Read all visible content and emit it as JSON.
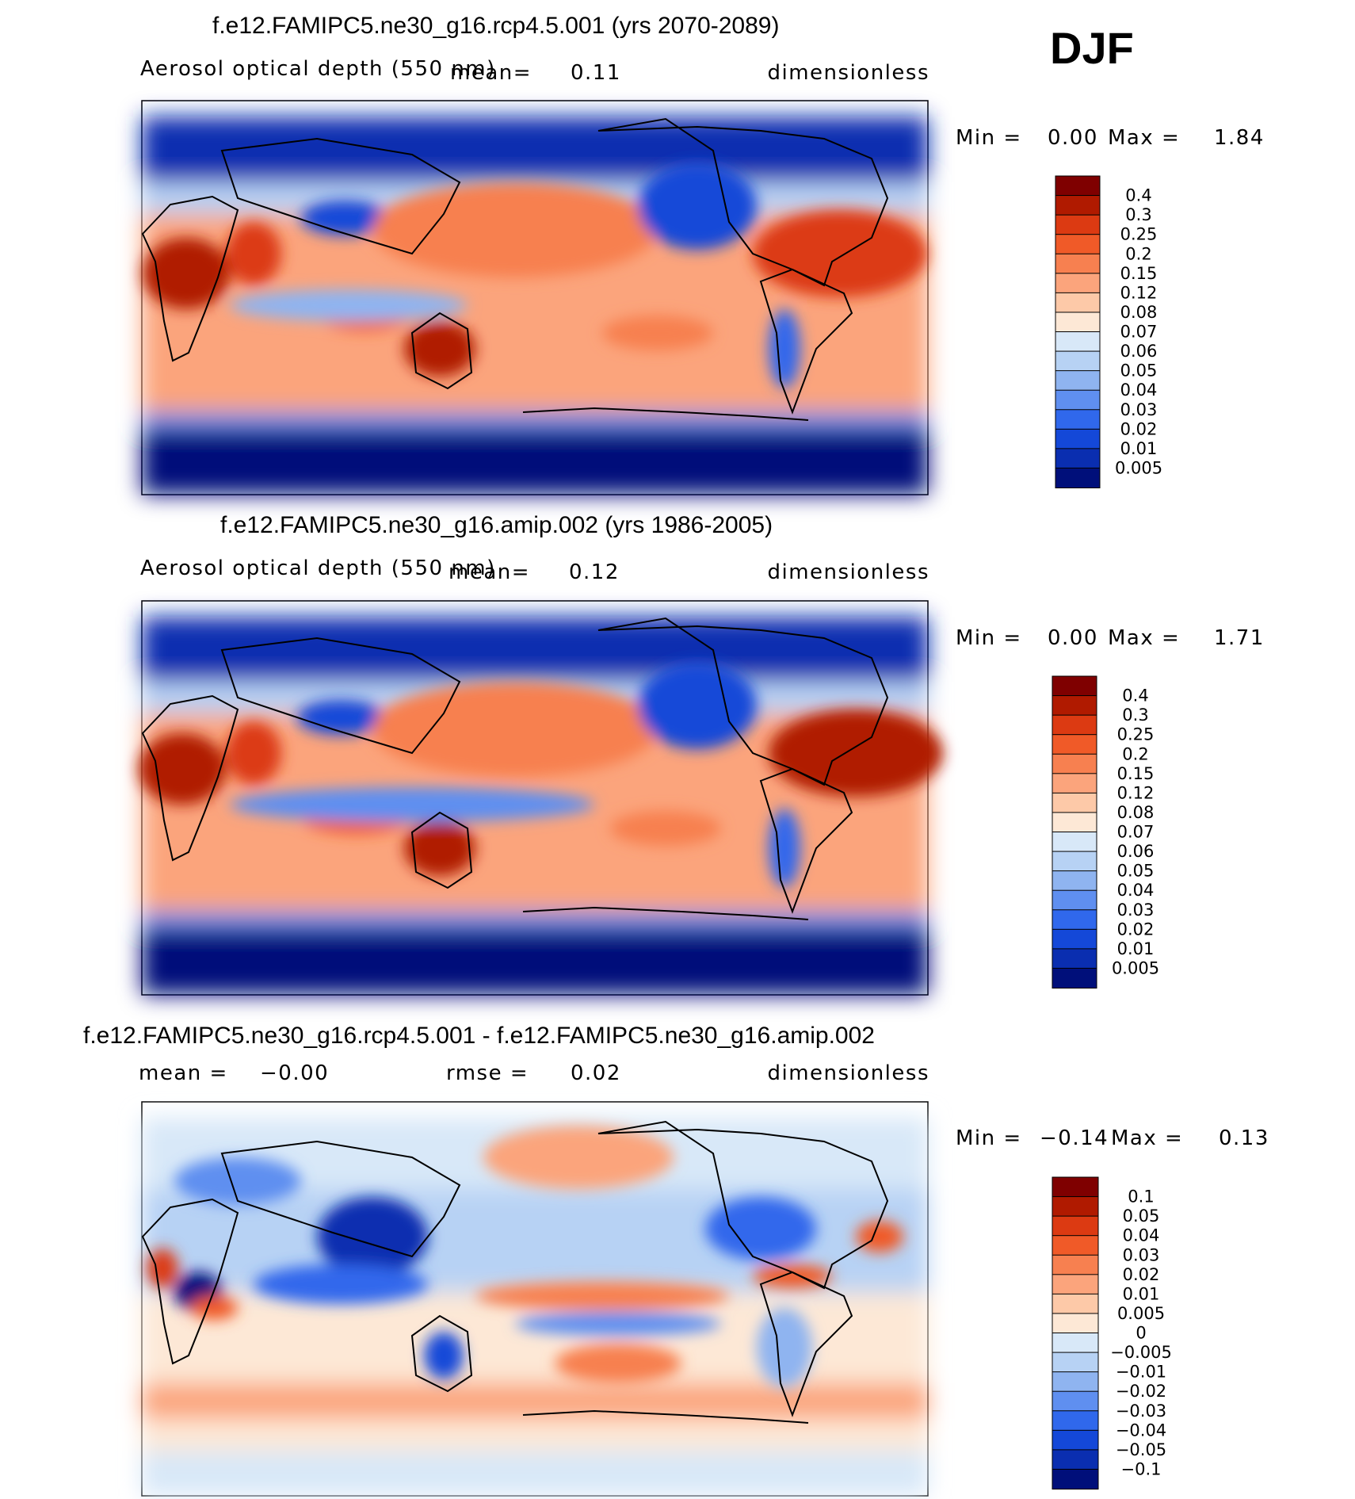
{
  "season": "DJF",
  "chart_data": [
    {
      "type": "heatmap",
      "title": "f.e12.FAMIPC5.ne30_g16.rcp4.5.001 (yrs 2070-2089)",
      "variable": "Aerosol optical depth (550 nm)",
      "mean_label": "mean=",
      "mean": "0.11",
      "units": "dimensionless",
      "min_label": "Min =",
      "min": "0.00",
      "max_label": "Max =",
      "max": "1.84",
      "colorbar_levels": [
        "0.4",
        "0.3",
        "0.25",
        "0.2",
        "0.15",
        "0.12",
        "0.08",
        "0.07",
        "0.06",
        "0.05",
        "0.04",
        "0.03",
        "0.02",
        "0.01",
        "0.005"
      ],
      "colorbar_colors": [
        "#7f0000",
        "#b01a00",
        "#dc3a12",
        "#f05a28",
        "#f78050",
        "#fba47c",
        "#fdc9a8",
        "#fde8d6",
        "#d8e8f8",
        "#b7d2f4",
        "#8fb4f0",
        "#5f8ff0",
        "#3068ec",
        "#1448d8",
        "#0a2eb0",
        "#000f7a"
      ]
    },
    {
      "type": "heatmap",
      "title": "f.e12.FAMIPC5.ne30_g16.amip.002 (yrs 1986-2005)",
      "variable": "Aerosol optical depth (550 nm)",
      "mean_label": "mean=",
      "mean": "0.12",
      "units": "dimensionless",
      "min_label": "Min =",
      "min": "0.00",
      "max_label": "Max =",
      "max": "1.71",
      "colorbar_levels": [
        "0.4",
        "0.3",
        "0.25",
        "0.2",
        "0.15",
        "0.12",
        "0.08",
        "0.07",
        "0.06",
        "0.05",
        "0.04",
        "0.03",
        "0.02",
        "0.01",
        "0.005"
      ],
      "colorbar_colors": [
        "#7f0000",
        "#b01a00",
        "#dc3a12",
        "#f05a28",
        "#f78050",
        "#fba47c",
        "#fdc9a8",
        "#fde8d6",
        "#d8e8f8",
        "#b7d2f4",
        "#8fb4f0",
        "#5f8ff0",
        "#3068ec",
        "#1448d8",
        "#0a2eb0",
        "#000f7a"
      ]
    },
    {
      "type": "heatmap",
      "title": "f.e12.FAMIPC5.ne30_g16.rcp4.5.001 - f.e12.FAMIPC5.ne30_g16.amip.002",
      "mean_label": "mean =",
      "mean": "−0.00",
      "rmse_label": "rmse =",
      "rmse": "0.02",
      "units": "dimensionless",
      "min_label": "Min =",
      "min": "−0.14",
      "max_label": "Max =",
      "max": "0.13",
      "colorbar_levels": [
        "0.1",
        "0.05",
        "0.04",
        "0.03",
        "0.02",
        "0.01",
        "0.005",
        "0",
        "−0.005",
        "−0.01",
        "−0.02",
        "−0.03",
        "−0.04",
        "−0.05",
        "−0.1"
      ],
      "colorbar_colors": [
        "#7f0000",
        "#b01a00",
        "#dc3a12",
        "#f05a28",
        "#f78050",
        "#fba47c",
        "#fdc9a8",
        "#fde8d6",
        "#d8e8f8",
        "#b7d2f4",
        "#8fb4f0",
        "#5f8ff0",
        "#3068ec",
        "#1448d8",
        "#0a2eb0",
        "#000f7a"
      ]
    }
  ]
}
